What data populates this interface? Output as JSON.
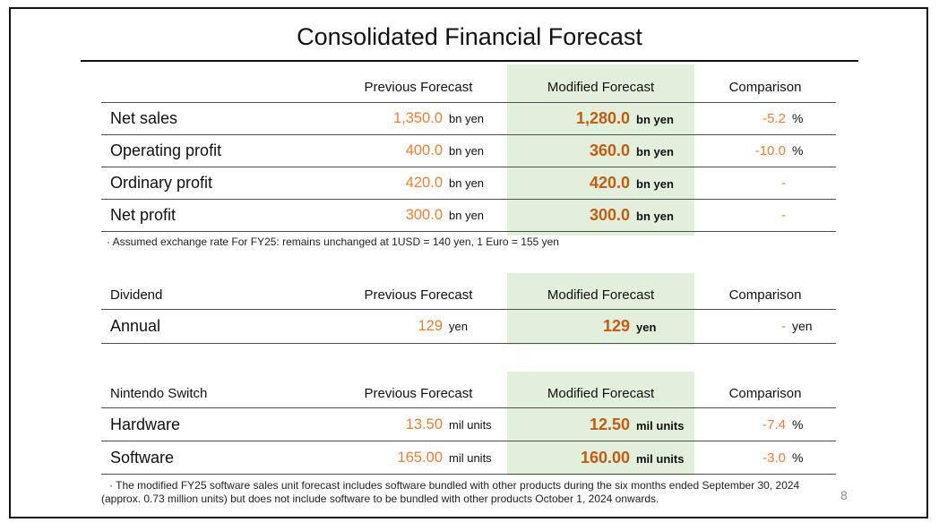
{
  "slide": {
    "title": "Consolidated Financial Forecast",
    "page_number": "8",
    "colors": {
      "highlight_green": "#E2EFDA",
      "previous_value_orange": "#ED7D31",
      "modified_value_orange": "#C55A11",
      "text_black": "#111111",
      "page_number_gray": "#8C8C8C"
    }
  },
  "financial_table": {
    "headers": {
      "label": "",
      "previous": "Previous Forecast",
      "modified": "Modified Forecast",
      "comparison": "Comparison"
    },
    "rows": [
      {
        "label": "Net sales",
        "prev_value": "1,350.0",
        "prev_unit": "bn yen",
        "mod_value": "1,280.0",
        "mod_unit": "bn yen",
        "cmp_value": "-5.2",
        "cmp_unit": "%"
      },
      {
        "label": "Operating profit",
        "prev_value": "400.0",
        "prev_unit": "bn yen",
        "mod_value": "360.0",
        "mod_unit": "bn yen",
        "cmp_value": "-10.0",
        "cmp_unit": "%"
      },
      {
        "label": "Ordinary profit",
        "prev_value": "420.0",
        "prev_unit": "bn yen",
        "mod_value": "420.0",
        "mod_unit": "bn yen",
        "cmp_value": "-",
        "cmp_unit": ""
      },
      {
        "label": "Net profit",
        "prev_value": "300.0",
        "prev_unit": "bn yen",
        "mod_value": "300.0",
        "mod_unit": "bn yen",
        "cmp_value": "-",
        "cmp_unit": ""
      }
    ],
    "note": "· Assumed exchange rate For FY25: remains unchanged at 1USD = 140 yen, 1 Euro = 155 yen"
  },
  "dividend_table": {
    "headers": {
      "label": "Dividend",
      "previous": "Previous Forecast",
      "modified": "Modified Forecast",
      "comparison": "Comparison"
    },
    "rows": [
      {
        "label": "Annual",
        "prev_value": "129",
        "prev_unit": "yen",
        "mod_value": "129",
        "mod_unit": "yen",
        "cmp_value": "-",
        "cmp_unit": "yen"
      }
    ]
  },
  "switch_table": {
    "headers": {
      "label": "Nintendo Switch",
      "previous": "Previous Forecast",
      "modified": "Modified Forecast",
      "comparison": "Comparison"
    },
    "rows": [
      {
        "label": "Hardware",
        "prev_value": "13.50",
        "prev_unit": "mil units",
        "mod_value": "12.50",
        "mod_unit": "mil units",
        "cmp_value": "-7.4",
        "cmp_unit": "%"
      },
      {
        "label": "Software",
        "prev_value": "165.00",
        "prev_unit": "mil units",
        "mod_value": "160.00",
        "mod_unit": "mil units",
        "cmp_value": "-3.0",
        "cmp_unit": "%"
      }
    ],
    "note": "· The modified FY25 software sales unit forecast includes software bundled with other products during the six months ended September 30, 2024 (approx. 0.73 million units) but does not include software to be bundled with other products October 1, 2024 onwards."
  }
}
